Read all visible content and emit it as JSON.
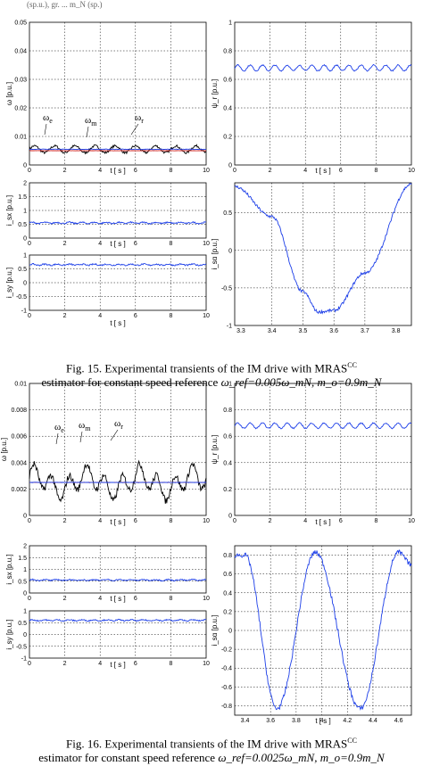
{
  "header_fragment": "(sp.u.), gr. ... m_N (sp.)",
  "figures": [
    {
      "caption_line1": "Fig. 15. Experimental transients of the IM drive with MRAS",
      "caption_sup": "CC",
      "caption_line2_prefix": "estimator for constant speed reference ",
      "caption_line2_math": "ω_ref=0.005ω_mN, m_o=0.9m_N",
      "panels": [
        {
          "ylabel": "ω [p.u.]",
          "xlabel": "t [ s ]",
          "xticks": [
            "0",
            "2",
            "4",
            "6",
            "8",
            "10"
          ],
          "yticks": [
            "0",
            "0.01",
            "0.02",
            "0.03",
            "0.04",
            "0.05"
          ],
          "annotations": [
            "ω_e",
            "ω_m",
            "ω_r"
          ]
        },
        {
          "ylabel": "ψ_r [p.u.]",
          "xlabel": "t [ s ]",
          "xticks": [
            "0",
            "2",
            "4",
            "6",
            "8",
            "10"
          ],
          "yticks": [
            "0",
            "0.2",
            "0.4",
            "0.6",
            "0.8",
            "1"
          ]
        },
        {
          "ylabel": "i_sx [p.u.]",
          "xlabel": "t [ s ]",
          "xticks": [
            "0",
            "2",
            "4",
            "6",
            "8",
            "10"
          ],
          "yticks": [
            "0",
            "0.5",
            "1",
            "1.5",
            "2"
          ]
        },
        {
          "ylabel": "i_sy [p.u.]",
          "xlabel": "t [ s ]",
          "xticks": [
            "0",
            "2",
            "4",
            "6",
            "8",
            "10"
          ],
          "yticks": [
            "-1",
            "-0.5",
            "0",
            "0.5",
            "1"
          ]
        },
        {
          "ylabel": "i_sα [p.u.]",
          "xlabel": "",
          "xticks": [
            "3.3",
            "3.4",
            "3.5",
            "3.6",
            "3.7",
            "3.8"
          ],
          "yticks": [
            "-1",
            "-0.5",
            "0",
            "0.5"
          ]
        }
      ]
    },
    {
      "caption_line1": "Fig. 16. Experimental transients of the IM drive with MRAS",
      "caption_sup": "CC",
      "caption_line2_prefix": "estimator for constant speed reference ",
      "caption_line2_math": "ω_ref=0.0025ω_mN, m_o=0.9m_N",
      "panels": [
        {
          "ylabel": "ω [p.u.]",
          "xlabel": "t [ s ]",
          "xticks": [
            "0",
            "2",
            "4",
            "6",
            "8",
            "10"
          ],
          "yticks": [
            "0",
            "0.002",
            "0.004",
            "0.006",
            "0.008",
            "0.01"
          ],
          "annotations": [
            "ω_e",
            "ω_m",
            "ω_r"
          ]
        },
        {
          "ylabel": "ψ_r [p.u.]",
          "xlabel": "t [ s ]",
          "xticks": [
            "0",
            "2",
            "4",
            "6",
            "8",
            "10"
          ],
          "yticks": [
            "0",
            "0.2",
            "0.4",
            "0.6",
            "0.8",
            "1"
          ]
        },
        {
          "ylabel": "i_sx [p.u.]",
          "xlabel": "t [ s ]",
          "xticks": [
            "0",
            "2",
            "4",
            "6",
            "8",
            "10"
          ],
          "yticks": [
            "0",
            "0.5",
            "1",
            "1.5",
            "2"
          ]
        },
        {
          "ylabel": "i_sy [p.u.]",
          "xlabel": "t [ s ]",
          "xticks": [
            "0",
            "2",
            "4",
            "6",
            "8",
            "10"
          ],
          "yticks": [
            "-1",
            "-0.5",
            "0",
            "0.5",
            "1"
          ]
        },
        {
          "ylabel": "i_sα [p.u.]",
          "xlabel": "t [ s ]",
          "xticks": [
            "3.4",
            "3.6",
            "3.8",
            "4",
            "4.2",
            "4.4",
            "4.6"
          ],
          "yticks": [
            "-0.8",
            "-0.6",
            "-0.4",
            "-0.2",
            "0",
            "0.2",
            "0.4",
            "0.6",
            "0.8"
          ]
        }
      ]
    }
  ],
  "chart_data": [
    {
      "type": "line",
      "figure": "15a",
      "x": [
        0,
        10
      ],
      "ylim": [
        0,
        0.05
      ],
      "series": [
        {
          "name": "ω_e",
          "values": [
            0.0055,
            0.0055
          ]
        },
        {
          "name": "ω_m",
          "values": [
            0.005,
            0.005
          ]
        },
        {
          "name": "ω_r",
          "values": [
            0.0055,
            0.0055
          ]
        }
      ]
    },
    {
      "type": "line",
      "figure": "15b",
      "x": [
        0,
        10
      ],
      "ylim": [
        0,
        1
      ],
      "series": [
        {
          "values": [
            0.68,
            0.68
          ]
        }
      ]
    },
    {
      "type": "line",
      "figure": "15c",
      "x": [
        0,
        10
      ],
      "ylim": [
        0,
        2
      ],
      "series": [
        {
          "values": [
            0.55,
            0.55
          ]
        }
      ]
    },
    {
      "type": "line",
      "figure": "15d",
      "x": [
        0,
        10
      ],
      "ylim": [
        -1,
        1
      ],
      "series": [
        {
          "values": [
            0.65,
            0.65
          ]
        }
      ]
    },
    {
      "type": "line",
      "figure": "15e",
      "x": [
        3.28,
        3.4,
        3.5,
        3.55,
        3.6,
        3.7,
        3.85
      ],
      "ylim": [
        -1,
        0.9
      ],
      "series": [
        {
          "values": [
            0.85,
            0.45,
            -0.55,
            -0.82,
            -0.8,
            -0.3,
            0.88
          ]
        }
      ]
    },
    {
      "type": "line",
      "figure": "16a",
      "x": [
        0,
        10
      ],
      "ylim": [
        0,
        0.01
      ],
      "series": [
        {
          "name": "ω_m",
          "values": [
            0.0025,
            0.0025
          ]
        }
      ]
    },
    {
      "type": "line",
      "figure": "16b",
      "x": [
        0,
        10
      ],
      "ylim": [
        0,
        1
      ],
      "series": [
        {
          "values": [
            0.68,
            0.68
          ]
        }
      ]
    },
    {
      "type": "line",
      "figure": "16c",
      "x": [
        0,
        10
      ],
      "ylim": [
        0,
        2
      ],
      "series": [
        {
          "values": [
            0.55,
            0.55
          ]
        }
      ]
    },
    {
      "type": "line",
      "figure": "16d",
      "x": [
        0,
        10
      ],
      "ylim": [
        -1,
        1
      ],
      "series": [
        {
          "values": [
            0.6,
            0.6
          ]
        }
      ]
    },
    {
      "type": "line",
      "figure": "16e",
      "x": [
        3.32,
        3.4,
        3.65,
        3.95,
        4.3,
        4.6,
        4.7
      ],
      "ylim": [
        -0.9,
        0.9
      ],
      "series": [
        {
          "values": [
            0.8,
            0.8,
            -0.83,
            0.83,
            -0.83,
            0.83,
            0.7
          ]
        }
      ]
    }
  ]
}
